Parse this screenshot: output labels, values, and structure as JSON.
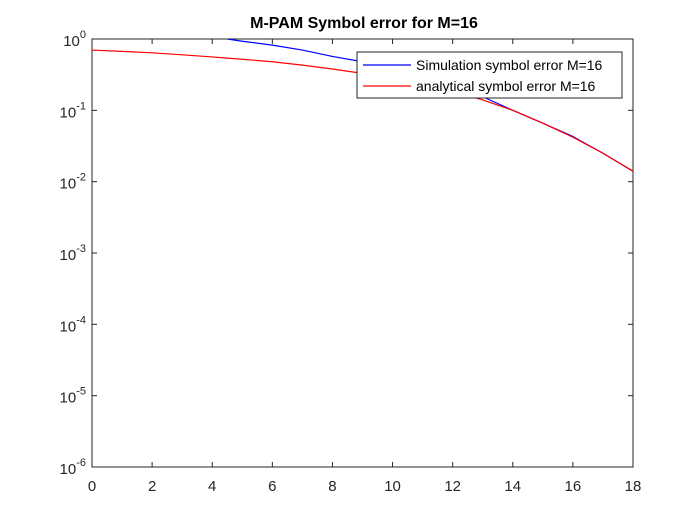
{
  "chart_data": {
    "type": "line",
    "title": "M-PAM Symbol error for M=16",
    "xlabel": "",
    "ylabel": "",
    "xlim": [
      0,
      18
    ],
    "ylim": [
      1e-06,
      1
    ],
    "yscale": "log",
    "grid": false,
    "legend_position": "top-right",
    "x_ticks": [
      "0",
      "2",
      "4",
      "6",
      "8",
      "10",
      "12",
      "14",
      "16",
      "18"
    ],
    "y_ticks": [
      {
        "base": "10",
        "exp": "0"
      },
      {
        "base": "10",
        "exp": "-1"
      },
      {
        "base": "10",
        "exp": "-2"
      },
      {
        "base": "10",
        "exp": "-3"
      },
      {
        "base": "10",
        "exp": "-4"
      },
      {
        "base": "10",
        "exp": "-5"
      },
      {
        "base": "10",
        "exp": "-6"
      }
    ],
    "x": [
      0,
      1,
      2,
      3,
      4,
      4.5,
      5,
      6,
      7,
      8,
      9,
      10,
      11,
      12,
      13,
      14,
      15,
      16,
      17,
      18
    ],
    "series": [
      {
        "name": "Simulation symbol error M=16",
        "color": "#0000ff",
        "values": [
          null,
          null,
          null,
          null,
          null,
          1.0,
          0.93,
          0.82,
          0.7,
          0.57,
          0.48,
          0.39,
          0.31,
          0.23,
          0.155,
          0.1,
          0.066,
          0.043,
          0.025,
          0.014
        ]
      },
      {
        "name": "analytical symbol error M=16",
        "color": "#ff0000",
        "values": [
          0.7,
          0.67,
          0.64,
          0.6,
          0.56,
          0.54,
          0.52,
          0.48,
          0.43,
          0.38,
          0.33,
          0.28,
          0.23,
          0.185,
          0.14,
          0.1,
          0.066,
          0.042,
          0.025,
          0.014
        ]
      }
    ]
  }
}
